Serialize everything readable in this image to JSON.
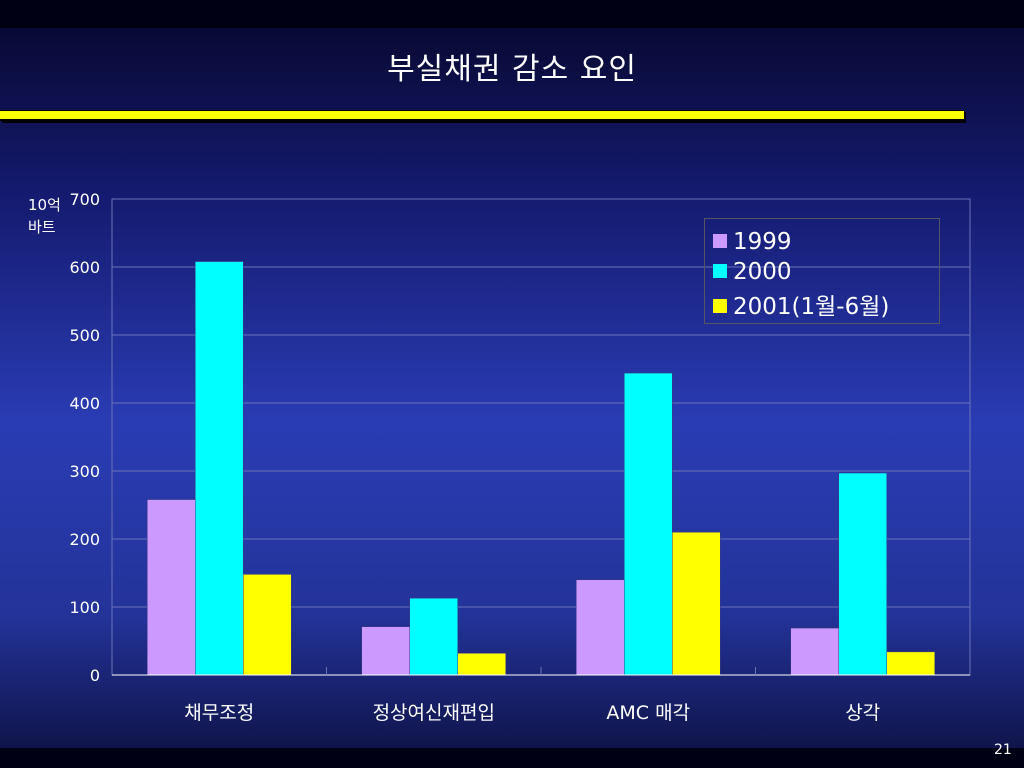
{
  "slide": {
    "title": "부실채권 감소 요인",
    "y_unit_line1": "10억",
    "y_unit_line2": "바트",
    "page_number": "21"
  },
  "colors": {
    "s1999": "#cc99ff",
    "s2000": "#00ffff",
    "s2001": "#ffff00",
    "rule": "#ffff00"
  },
  "chart_data": {
    "type": "bar",
    "title": "",
    "xlabel": "",
    "ylabel": "10억 바트",
    "ylim": [
      0,
      700
    ],
    "yticks": [
      0,
      100,
      200,
      300,
      400,
      500,
      600,
      700
    ],
    "grid": true,
    "legend_position": "top-right",
    "categories": [
      "채무조정",
      "정상여신재편입",
      "AMC 매각",
      "상각"
    ],
    "series": [
      {
        "name": "1999",
        "color": "#cc99ff",
        "values": [
          258,
          71,
          140,
          69
        ]
      },
      {
        "name": "2000",
        "color": "#00ffff",
        "values": [
          608,
          113,
          444,
          297
        ]
      },
      {
        "name": "2001(1월-6월)",
        "color": "#ffff00",
        "values": [
          148,
          32,
          210,
          34
        ]
      }
    ]
  }
}
